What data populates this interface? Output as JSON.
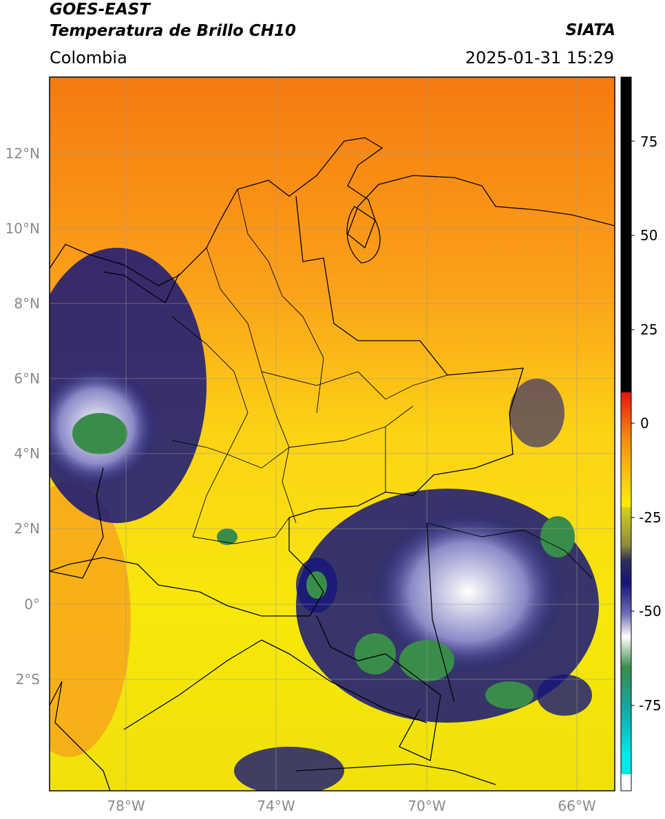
{
  "header": {
    "title_line1": "GOES-EAST",
    "title_line2": "Temperatura de Brillo CH10",
    "region": "Colombia",
    "source": "SIATA",
    "datetime": "2025-01-31 15:29"
  },
  "map": {
    "lat_labels": [
      "12°N",
      "10°N",
      "8°N",
      "6°N",
      "4°N",
      "2°N",
      "0°",
      "2°S"
    ],
    "lon_labels": [
      "78°W",
      "74°W",
      "70°W",
      "66°W"
    ],
    "extent": {
      "lon_min": -80,
      "lon_max": -65,
      "lat_min": -5,
      "lat_max": 14
    }
  },
  "colorbar": {
    "ticks": [
      "75",
      "50",
      "25",
      "0",
      "-25",
      "-50",
      "-75"
    ],
    "colors": {
      "black": "#000000",
      "red": "#e8140c",
      "orange": "#f58a10",
      "yellow": "#ffee00",
      "olive": "#8c8c3c",
      "navy": "#15157a",
      "white": "#ffffff",
      "green": "#3a8c4a",
      "teal": "#15a5a0",
      "cyan": "#00e8e8"
    }
  }
}
